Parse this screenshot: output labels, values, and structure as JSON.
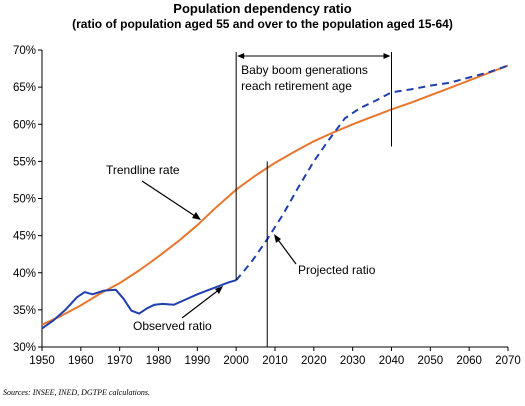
{
  "chart_data": {
    "type": "line",
    "title": "Population dependency ratio",
    "subtitle": "(ratio of population aged 55 and over to the population aged 15-64)",
    "xlabel": "",
    "ylabel": "",
    "xlim": [
      1950,
      2070
    ],
    "ylim": [
      30,
      70
    ],
    "x_ticks": [
      "1950",
      "1960",
      "1970",
      "1980",
      "1990",
      "2000",
      "2010",
      "2020",
      "2030",
      "2040",
      "2050",
      "2060",
      "2070"
    ],
    "y_ticks": [
      "30%",
      "35%",
      "40%",
      "45%",
      "50%",
      "55%",
      "60%",
      "65%",
      "70%"
    ],
    "grid": false,
    "colors": {
      "trend": "#E8762C",
      "observed": "#1F3FAF",
      "projected": "#1F3FAF",
      "axis": "#000000"
    },
    "series": [
      {
        "name": "Trendline rate",
        "style": "solid",
        "color": "#E8762C",
        "x": [
          1950,
          1955,
          1960,
          1965,
          1970,
          1975,
          1980,
          1985,
          1990,
          1995,
          2000,
          2005,
          2010,
          2015,
          2020,
          2025,
          2030,
          2035,
          2040,
          2045,
          2050,
          2055,
          2060,
          2065,
          2070
        ],
        "y": [
          33.0,
          34.2,
          35.6,
          37.2,
          38.6,
          40.3,
          42.2,
          44.2,
          46.4,
          48.9,
          51.2,
          53.1,
          54.8,
          56.3,
          57.7,
          58.9,
          60.0,
          61.0,
          62.0,
          62.9,
          63.9,
          64.9,
          65.9,
          66.9,
          67.9
        ]
      },
      {
        "name": "Observed ratio",
        "style": "solid",
        "color": "#1F3FAF",
        "x": [
          1950,
          1953,
          1956,
          1959,
          1961,
          1963,
          1966,
          1969,
          1971,
          1973,
          1975,
          1977,
          1979,
          1981,
          1984,
          1987,
          1990,
          1993,
          1996,
          1998,
          2000
        ],
        "y": [
          32.5,
          33.6,
          35.0,
          36.7,
          37.4,
          37.1,
          37.6,
          37.7,
          36.5,
          34.9,
          34.5,
          35.2,
          35.7,
          35.8,
          35.7,
          36.4,
          37.1,
          37.7,
          38.3,
          38.7,
          39.0
        ]
      },
      {
        "name": "Projected ratio",
        "style": "dashed",
        "color": "#1F3FAF",
        "x": [
          2000,
          2004,
          2008,
          2012,
          2016,
          2020,
          2024,
          2028,
          2032,
          2036,
          2040,
          2045,
          2050,
          2055,
          2060,
          2065,
          2070
        ],
        "y": [
          39.0,
          41.5,
          44.5,
          47.8,
          51.5,
          55.0,
          58.0,
          60.8,
          62.2,
          63.2,
          64.3,
          64.7,
          65.2,
          65.6,
          66.3,
          67.0,
          67.9
        ]
      }
    ],
    "annotations": {
      "baby_boom_line1": "Baby boom generations",
      "baby_boom_line2": "reach retirement age",
      "baby_boom_from": 2000,
      "baby_boom_to": 2040,
      "trendline_label": "Trendline rate",
      "observed_label": "Observed ratio",
      "projected_label": "Projected ratio",
      "vertical_marker_year": 2008
    }
  },
  "source_note": "Sources: INSEE, INED, DGTPE calculations."
}
